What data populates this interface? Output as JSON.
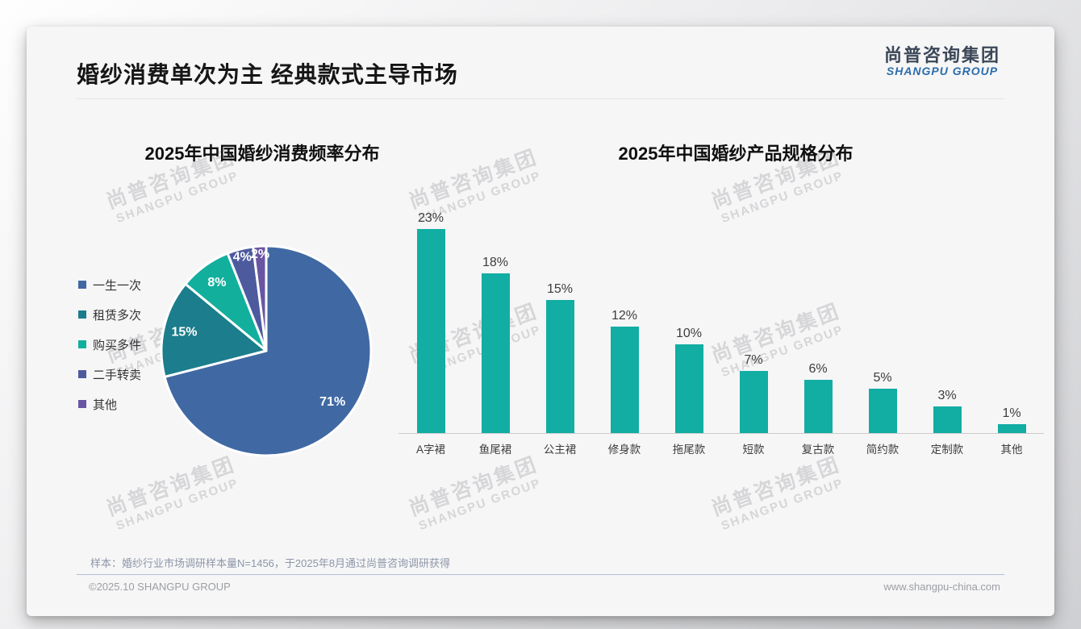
{
  "page": {
    "title": "婚纱消费单次为主 经典款式主导市场",
    "logo": {
      "cn": "尚普咨询集团",
      "en": "SHANGPU GROUP"
    },
    "watermark": {
      "cn": "尚普咨询集团",
      "en": "SHANGPU GROUP"
    },
    "footnote": "样本：婚纱行业市场调研样本量N=1456，于2025年8月通过尚普咨询调研获得",
    "copyright": "©2025.10 SHANGPU GROUP",
    "website": "www.shangpu-china.com"
  },
  "colors": {
    "card_bg": "#f6f6f7",
    "bar_color": "#12ada3",
    "accent_blue": "#2b6cab",
    "footer_line": "#b2bfd3",
    "watermark": "#d6d6d8"
  },
  "chart_data": [
    {
      "type": "pie",
      "title": "2025年中国婚纱消费频率分布",
      "labels": [
        "一生一次",
        "租赁多次",
        "购买多件",
        "二手转卖",
        "其他"
      ],
      "values": [
        71,
        15,
        8,
        4,
        2
      ],
      "unit": "%",
      "colors": [
        "#4069a3",
        "#1c7d8c",
        "#12af9d",
        "#4d5b9e",
        "#6a55a3"
      ],
      "legend_position": "left",
      "start_angle_deg": 0,
      "label_style": "white-bold-inside"
    },
    {
      "type": "bar",
      "title": "2025年中国婚纱产品规格分布",
      "categories": [
        "A字裙",
        "鱼尾裙",
        "公主裙",
        "修身款",
        "拖尾款",
        "短款",
        "复古款",
        "简约款",
        "定制款",
        "其他"
      ],
      "values": [
        23,
        18,
        15,
        12,
        10,
        7,
        6,
        5,
        3,
        1
      ],
      "unit": "%",
      "bar_color": "#12ada3",
      "ylim": [
        0,
        25
      ],
      "grid": false,
      "value_labels": "above",
      "axis_line": "bottom"
    }
  ]
}
